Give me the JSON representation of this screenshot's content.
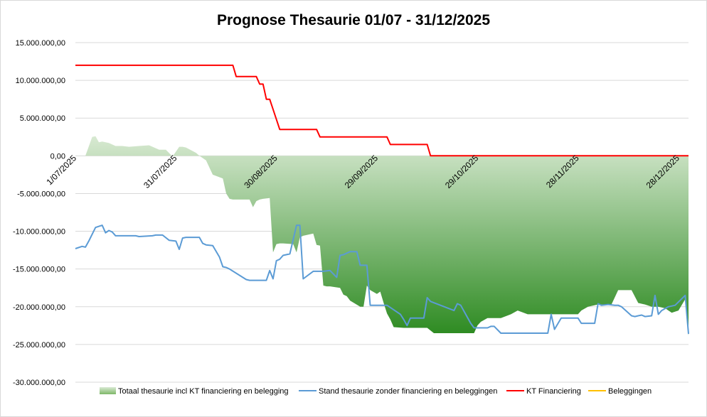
{
  "chart_data": {
    "type": "line",
    "title": "Prognose Thesaurie 01/07 - 31/12/2025",
    "xlabel": "",
    "ylabel": "",
    "ylim": [
      -30000000,
      15000000
    ],
    "yticks": [
      15000000,
      10000000,
      5000000,
      0,
      -5000000,
      -10000000,
      -15000000,
      -20000000,
      -25000000,
      -30000000
    ],
    "ytick_labels": [
      "15.000.000,00",
      "10.000.000,00",
      "5.000.000,00",
      "0,00",
      "-5.000.000,00",
      "-10.000.000,00",
      "-15.000.000,00",
      "-20.000.000,00",
      "-25.000.000,00",
      "-30.000.000,00"
    ],
    "xlim": [
      "2025-07-01",
      "2025-12-31"
    ],
    "xticks": [
      "2025-07-01",
      "2025-07-31",
      "2025-08-30",
      "2025-09-29",
      "2025-10-29",
      "2025-11-28",
      "2025-12-28"
    ],
    "xtick_labels": [
      "1/07/2025",
      "31/07/2025",
      "30/08/2025",
      "29/09/2025",
      "29/10/2025",
      "28/11/2025",
      "28/12/2025"
    ],
    "grid": "horizontal",
    "legend": "bottom",
    "series": [
      {
        "name": "Totaal thesaurie incl KT financiering en belegging",
        "kind": "area",
        "color_light": "#d9ead3",
        "color_dark": "#2e8b22",
        "x": [
          "2025-07-01",
          "2025-07-04",
          "2025-07-06",
          "2025-07-07",
          "2025-07-08",
          "2025-07-09",
          "2025-07-11",
          "2025-07-13",
          "2025-07-15",
          "2025-07-17",
          "2025-07-20",
          "2025-07-23",
          "2025-07-26",
          "2025-07-28",
          "2025-07-30",
          "2025-08-01",
          "2025-08-02",
          "2025-08-03",
          "2025-08-06",
          "2025-08-07",
          "2025-08-09",
          "2025-08-11",
          "2025-08-14",
          "2025-08-15",
          "2025-08-16",
          "2025-08-17",
          "2025-08-22",
          "2025-08-23",
          "2025-08-24",
          "2025-08-25",
          "2025-08-26",
          "2025-08-28",
          "2025-08-29",
          "2025-08-30",
          "2025-08-31",
          "2025-09-01",
          "2025-09-04",
          "2025-09-05",
          "2025-09-06",
          "2025-09-07",
          "2025-09-10",
          "2025-09-11",
          "2025-09-12",
          "2025-09-13",
          "2025-09-14",
          "2025-09-15",
          "2025-09-18",
          "2025-09-19",
          "2025-09-20",
          "2025-09-21",
          "2025-09-24",
          "2025-09-25",
          "2025-09-26",
          "2025-09-27",
          "2025-09-29",
          "2025-09-30",
          "2025-10-01",
          "2025-10-02",
          "2025-10-03",
          "2025-10-04",
          "2025-10-07",
          "2025-10-08",
          "2025-10-10",
          "2025-10-13",
          "2025-10-14",
          "2025-10-16",
          "2025-10-18",
          "2025-10-22",
          "2025-10-25",
          "2025-10-28",
          "2025-10-29",
          "2025-10-30",
          "2025-11-01",
          "2025-11-03",
          "2025-11-05",
          "2025-11-08",
          "2025-11-10",
          "2025-11-13",
          "2025-11-17",
          "2025-11-21",
          "2025-11-25",
          "2025-11-28",
          "2025-11-29",
          "2025-12-01",
          "2025-12-04",
          "2025-12-08",
          "2025-12-10",
          "2025-12-12",
          "2025-12-14",
          "2025-12-16",
          "2025-12-18",
          "2025-12-20",
          "2025-12-22",
          "2025-12-24",
          "2025-12-26",
          "2025-12-28",
          "2025-12-30",
          "2025-12-31"
        ],
        "values": [
          0,
          0,
          2500000,
          2600000,
          1800000,
          1900000,
          1700000,
          1300000,
          1300000,
          1200000,
          1300000,
          1400000,
          800000,
          800000,
          -100000,
          1200000,
          1200000,
          1100000,
          400000,
          0,
          -600000,
          -2500000,
          -3000000,
          -5000000,
          -5700000,
          -5800000,
          -5800000,
          -6800000,
          -6000000,
          -5800000,
          -5700000,
          -5600000,
          -12800000,
          -11700000,
          -11600000,
          -11600000,
          -11700000,
          -12800000,
          -10800000,
          -10600000,
          -10300000,
          -11800000,
          -11900000,
          -17200000,
          -17300000,
          -17300000,
          -17500000,
          -18400000,
          -18600000,
          -19200000,
          -20000000,
          -20000000,
          -17200000,
          -17800000,
          -18300000,
          -18000000,
          -19500000,
          -20900000,
          -21700000,
          -22700000,
          -22800000,
          -22800000,
          -22800000,
          -22800000,
          -22800000,
          -23500000,
          -23500000,
          -23500000,
          -23500000,
          -23500000,
          -22500000,
          -22000000,
          -21500000,
          -21500000,
          -21500000,
          -21000000,
          -20500000,
          -21000000,
          -21000000,
          -21000000,
          -21000000,
          -21000000,
          -20500000,
          -20000000,
          -19700000,
          -19700000,
          -17800000,
          -17800000,
          -17800000,
          -19500000,
          -19700000,
          -20000000,
          -20000000,
          -20200000,
          -20800000,
          -20500000,
          -19000000,
          -23800000
        ]
      },
      {
        "name": "Stand thesaurie zonder financiering en beleggingen",
        "kind": "line",
        "color": "#5b9bd5",
        "x": [
          "2025-07-01",
          "2025-07-03",
          "2025-07-04",
          "2025-07-05",
          "2025-07-07",
          "2025-07-09",
          "2025-07-10",
          "2025-07-11",
          "2025-07-12",
          "2025-07-13",
          "2025-07-16",
          "2025-07-19",
          "2025-07-20",
          "2025-07-24",
          "2025-07-25",
          "2025-07-27",
          "2025-07-29",
          "2025-07-31",
          "2025-08-01",
          "2025-08-02",
          "2025-08-03",
          "2025-08-07",
          "2025-08-08",
          "2025-08-09",
          "2025-08-11",
          "2025-08-13",
          "2025-08-14",
          "2025-08-15",
          "2025-08-16",
          "2025-08-21",
          "2025-08-22",
          "2025-08-23",
          "2025-08-24",
          "2025-08-27",
          "2025-08-28",
          "2025-08-29",
          "2025-08-30",
          "2025-08-31",
          "2025-09-01",
          "2025-09-03",
          "2025-09-05",
          "2025-09-06",
          "2025-09-07",
          "2025-09-10",
          "2025-09-11",
          "2025-09-12",
          "2025-09-13",
          "2025-09-15",
          "2025-09-17",
          "2025-09-18",
          "2025-09-19",
          "2025-09-21",
          "2025-09-23",
          "2025-09-24",
          "2025-09-26",
          "2025-09-27",
          "2025-09-29",
          "2025-09-30",
          "2025-10-01",
          "2025-10-02",
          "2025-10-06",
          "2025-10-07",
          "2025-10-08",
          "2025-10-09",
          "2025-10-10",
          "2025-10-13",
          "2025-10-14",
          "2025-10-15",
          "2025-10-22",
          "2025-10-23",
          "2025-10-24",
          "2025-10-27",
          "2025-10-28",
          "2025-10-29",
          "2025-11-01",
          "2025-11-02",
          "2025-11-03",
          "2025-11-05",
          "2025-11-06",
          "2025-11-08",
          "2025-11-11",
          "2025-11-13",
          "2025-11-19",
          "2025-11-20",
          "2025-11-21",
          "2025-11-23",
          "2025-11-24",
          "2025-11-28",
          "2025-11-29",
          "2025-12-03",
          "2025-12-04",
          "2025-12-05",
          "2025-12-07",
          "2025-12-09",
          "2025-12-10",
          "2025-12-11",
          "2025-12-14",
          "2025-12-15",
          "2025-12-16",
          "2025-12-17",
          "2025-12-18",
          "2025-12-20",
          "2025-12-21",
          "2025-12-22",
          "2025-12-23",
          "2025-12-25",
          "2025-12-27",
          "2025-12-30",
          "2025-12-31"
        ],
        "values": [
          -12300000,
          -12000000,
          -12100000,
          -11300000,
          -9500000,
          -9200000,
          -10200000,
          -9900000,
          -10100000,
          -10600000,
          -10600000,
          -10600000,
          -10700000,
          -10600000,
          -10500000,
          -10500000,
          -11200000,
          -11300000,
          -12400000,
          -10900000,
          -10800000,
          -10800000,
          -11600000,
          -11800000,
          -11900000,
          -13400000,
          -14700000,
          -14800000,
          -15000000,
          -16400000,
          -16500000,
          -16500000,
          -16500000,
          -16500000,
          -15200000,
          -16300000,
          -13900000,
          -13700000,
          -13200000,
          -13000000,
          -9200000,
          -9200000,
          -16300000,
          -15300000,
          -15300000,
          -15300000,
          -15300000,
          -15200000,
          -16100000,
          -13200000,
          -13100000,
          -12700000,
          -12700000,
          -14500000,
          -14500000,
          -19800000,
          -19800000,
          -19800000,
          -19800000,
          -19800000,
          -21000000,
          -21700000,
          -22500000,
          -21500000,
          -21500000,
          -21500000,
          -18800000,
          -19300000,
          -20500000,
          -19600000,
          -19800000,
          -22200000,
          -22800000,
          -22800000,
          -22800000,
          -22600000,
          -22600000,
          -23500000,
          -23500000,
          -23500000,
          -23500000,
          -23500000,
          -23500000,
          -21000000,
          -23000000,
          -21500000,
          -21500000,
          -21500000,
          -22200000,
          -22200000,
          -19600000,
          -19800000,
          -19700000,
          -19800000,
          -19800000,
          -20000000,
          -21200000,
          -21300000,
          -21200000,
          -21100000,
          -21300000,
          -21200000,
          -18500000,
          -21000000,
          -20500000,
          -20000000,
          -19800000,
          -18500000,
          -23600000
        ]
      },
      {
        "name": "KT Financiering",
        "kind": "step",
        "color": "#ff0000",
        "x": [
          "2025-07-01",
          "2025-08-17",
          "2025-08-18",
          "2025-08-24",
          "2025-08-25",
          "2025-08-26",
          "2025-08-27",
          "2025-08-28",
          "2025-08-31",
          "2025-09-01",
          "2025-09-11",
          "2025-09-12",
          "2025-10-02",
          "2025-10-03",
          "2025-10-14",
          "2025-10-15",
          "2025-12-31"
        ],
        "values": [
          12000000,
          12000000,
          10500000,
          10500000,
          9500000,
          9500000,
          7500000,
          7500000,
          3500000,
          3500000,
          3500000,
          2500000,
          2500000,
          1500000,
          1500000,
          0,
          0
        ]
      },
      {
        "name": "Beleggingen",
        "kind": "line",
        "color": "#ffc000",
        "x": [],
        "values": []
      }
    ]
  }
}
